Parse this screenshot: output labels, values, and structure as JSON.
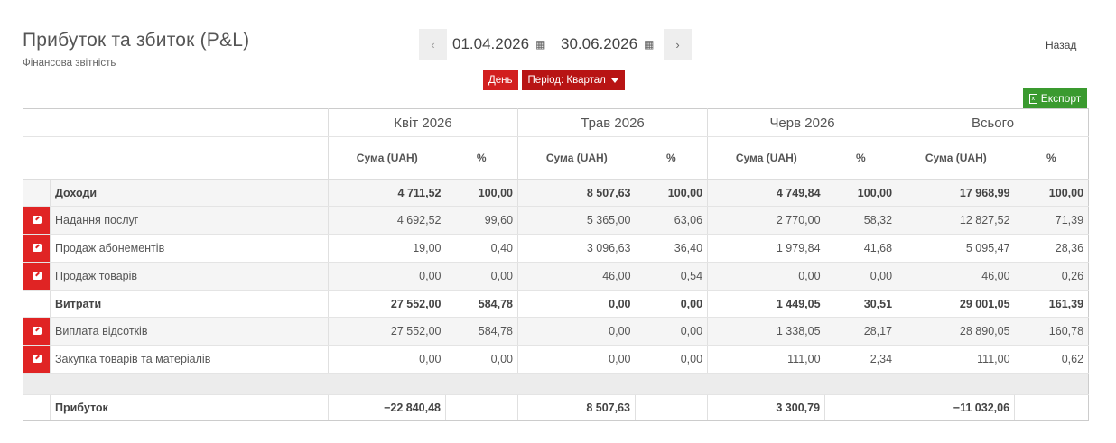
{
  "header": {
    "title": "Прибуток та збиток (P&L)",
    "subtitle": "Фінансова звітність",
    "back_label": "Назад"
  },
  "date_range": {
    "from": "01.04.2026",
    "to": "30.06.2026",
    "prev_icon": "chevron-left-icon",
    "next_icon": "chevron-right-icon",
    "calendar_icon": "calendar-icon"
  },
  "period": {
    "day_label": "День",
    "period_label": "Період: Квартал"
  },
  "export_label": "Експорт",
  "colors": {
    "accent_red": "#d21f1f",
    "export_green": "#3a9a2f"
  },
  "table": {
    "columns": [
      "Квіт 2026",
      "Трав 2026",
      "Черв 2026",
      "Всього"
    ],
    "sub_sum": "Сума (UAH)",
    "sub_pct": "%",
    "rows": [
      {
        "name": "Доходи",
        "group": true,
        "edit": false,
        "values": [
          "4 711,52",
          "100,00",
          "8 507,63",
          "100,00",
          "4 749,84",
          "100,00",
          "17 968,99",
          "100,00"
        ]
      },
      {
        "name": "Надання послуг",
        "group": false,
        "edit": true,
        "values": [
          "4 692,52",
          "99,60",
          "5 365,00",
          "63,06",
          "2 770,00",
          "58,32",
          "12 827,52",
          "71,39"
        ]
      },
      {
        "name": "Продаж абонементів",
        "group": false,
        "edit": true,
        "values": [
          "19,00",
          "0,40",
          "3 096,63",
          "36,40",
          "1 979,84",
          "41,68",
          "5 095,47",
          "28,36"
        ]
      },
      {
        "name": "Продаж товарів",
        "group": false,
        "edit": true,
        "values": [
          "0,00",
          "0,00",
          "46,00",
          "0,54",
          "0,00",
          "0,00",
          "46,00",
          "0,26"
        ]
      },
      {
        "name": "Витрати",
        "group": true,
        "edit": false,
        "values": [
          "27 552,00",
          "584,78",
          "0,00",
          "0,00",
          "1 449,05",
          "30,51",
          "29 001,05",
          "161,39"
        ]
      },
      {
        "name": "Виплата відсотків",
        "group": false,
        "edit": true,
        "values": [
          "27 552,00",
          "584,78",
          "0,00",
          "0,00",
          "1 338,05",
          "28,17",
          "28 890,05",
          "160,78"
        ]
      },
      {
        "name": "Закупка товарів та матеріалів",
        "group": false,
        "edit": true,
        "values": [
          "0,00",
          "0,00",
          "0,00",
          "0,00",
          "111,00",
          "2,34",
          "111,00",
          "0,62"
        ]
      }
    ],
    "profit": {
      "name": "Прибуток",
      "values": [
        "−22 840,48",
        "8 507,63",
        "3 300,79",
        "−11 032,06"
      ]
    }
  }
}
